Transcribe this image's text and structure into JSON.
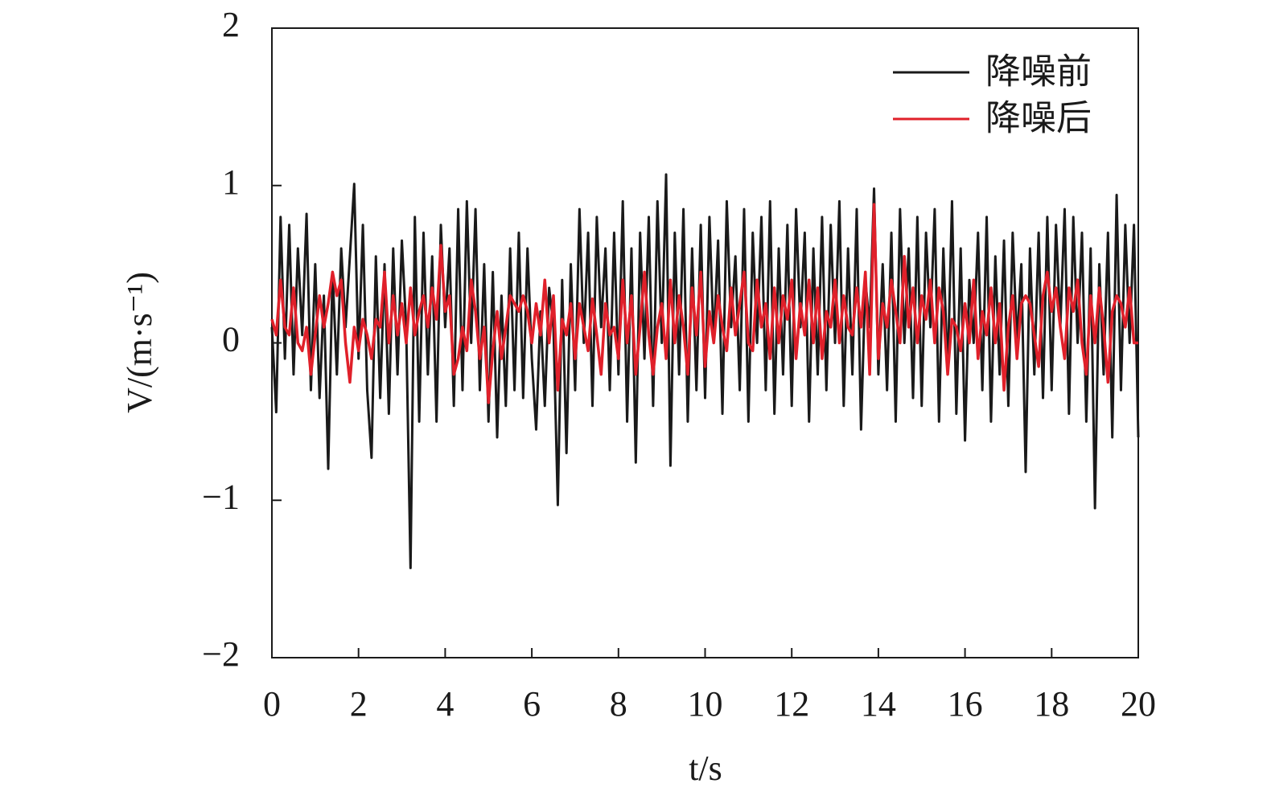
{
  "chart_data": {
    "type": "line",
    "xlabel": "t/s",
    "ylabel": "V/(m·s⁻¹)",
    "xlim": [
      0,
      20
    ],
    "ylim": [
      -2,
      2
    ],
    "xticks": [
      0,
      2,
      4,
      6,
      8,
      10,
      12,
      14,
      16,
      18,
      20
    ],
    "yticks": [
      {
        "value": -2,
        "label": "−2"
      },
      {
        "value": -1,
        "label": "−1"
      },
      0,
      1,
      2
    ],
    "legend": "upper right",
    "grid": false,
    "x": [
      0,
      0.1,
      0.2,
      0.3,
      0.4,
      0.5,
      0.6,
      0.7,
      0.8,
      0.9,
      1,
      1.1,
      1.2,
      1.3,
      1.4,
      1.5,
      1.6,
      1.7,
      1.8,
      1.9,
      2,
      2.1,
      2.2,
      2.3,
      2.4,
      2.5,
      2.6,
      2.7,
      2.8,
      2.9,
      3,
      3.1,
      3.2,
      3.3,
      3.4,
      3.5,
      3.6,
      3.7,
      3.8,
      3.9,
      4,
      4.1,
      4.2,
      4.3,
      4.4,
      4.5,
      4.6,
      4.7,
      4.8,
      4.9,
      5,
      5.1,
      5.2,
      5.3,
      5.4,
      5.5,
      5.6,
      5.7,
      5.8,
      5.9,
      6,
      6.1,
      6.2,
      6.3,
      6.4,
      6.5,
      6.6,
      6.7,
      6.8,
      6.9,
      7,
      7.1,
      7.2,
      7.3,
      7.4,
      7.5,
      7.6,
      7.7,
      7.8,
      7.9,
      8,
      8.1,
      8.2,
      8.3,
      8.4,
      8.5,
      8.6,
      8.7,
      8.8,
      8.9,
      9,
      9.1,
      9.2,
      9.3,
      9.4,
      9.5,
      9.6,
      9.7,
      9.8,
      9.9,
      10,
      10.1,
      10.2,
      10.3,
      10.4,
      10.5,
      10.6,
      10.7,
      10.8,
      10.9,
      11,
      11.1,
      11.2,
      11.3,
      11.4,
      11.5,
      11.6,
      11.7,
      11.8,
      11.9,
      12,
      12.1,
      12.2,
      12.3,
      12.4,
      12.5,
      12.6,
      12.7,
      12.8,
      12.9,
      13,
      13.1,
      13.2,
      13.3,
      13.4,
      13.5,
      13.6,
      13.7,
      13.8,
      13.9,
      14,
      14.1,
      14.2,
      14.3,
      14.4,
      14.5,
      14.6,
      14.7,
      14.8,
      14.9,
      15,
      15.1,
      15.2,
      15.3,
      15.4,
      15.5,
      15.6,
      15.7,
      15.8,
      15.9,
      16,
      16.1,
      16.2,
      16.3,
      16.4,
      16.5,
      16.6,
      16.7,
      16.8,
      16.9,
      17,
      17.1,
      17.2,
      17.3,
      17.4,
      17.5,
      17.6,
      17.7,
      17.8,
      17.9,
      18,
      18.1,
      18.2,
      18.3,
      18.4,
      18.5,
      18.6,
      18.7,
      18.8,
      18.9,
      19,
      19.1,
      19.2,
      19.3,
      19.4,
      19.5,
      19.6,
      19.7,
      19.8,
      19.9,
      20
    ],
    "series": [
      {
        "name": "降噪前",
        "color": "#1a1a1a",
        "values": [
          0.1,
          -0.44,
          0.8,
          -0.1,
          0.75,
          -0.2,
          0.6,
          0.05,
          0.82,
          -0.3,
          0.5,
          -0.35,
          0.3,
          -0.8,
          0.45,
          -0.2,
          0.6,
          0.1,
          0.55,
          1.01,
          -0.1,
          0.75,
          -0.3,
          -0.73,
          0.55,
          -0.35,
          0.5,
          -0.45,
          0.6,
          -0.2,
          0.65,
          0.1,
          -1.43,
          0.8,
          -0.5,
          0.7,
          -0.2,
          0.55,
          -0.5,
          0.75,
          0.1,
          0.6,
          -0.4,
          0.85,
          -0.3,
          0.9,
          0.0,
          0.85,
          -0.3,
          0.5,
          -0.5,
          0.45,
          -0.6,
          0.3,
          -0.4,
          0.6,
          -0.3,
          0.7,
          -0.35,
          0.6,
          -0.1,
          -0.55,
          0.2,
          -0.4,
          0.35,
          0.1,
          -1.03,
          0.4,
          -0.7,
          0.5,
          -0.3,
          0.85,
          0.0,
          0.7,
          -0.4,
          0.8,
          0.1,
          0.6,
          -0.3,
          0.7,
          -0.2,
          0.9,
          -0.5,
          0.6,
          -0.76,
          0.7,
          -0.1,
          0.8,
          -0.4,
          0.9,
          0.0,
          1.07,
          -0.78,
          0.7,
          -0.2,
          0.85,
          -0.5,
          0.6,
          -0.3,
          0.75,
          -0.35,
          0.8,
          0.0,
          0.65,
          -0.45,
          0.9,
          0.1,
          0.55,
          -0.3,
          0.85,
          -0.5,
          0.7,
          0.0,
          0.8,
          -0.3,
          0.9,
          -0.45,
          0.6,
          -0.2,
          0.75,
          -0.4,
          0.85,
          0.1,
          0.7,
          -0.5,
          0.6,
          -0.2,
          0.8,
          -0.3,
          0.75,
          0.0,
          0.9,
          -0.4,
          0.6,
          -0.2,
          0.85,
          -0.55,
          0.4,
          0.1,
          0.98,
          -0.2,
          0.5,
          -0.3,
          0.7,
          -0.5,
          0.85,
          0.0,
          0.6,
          -0.35,
          0.8,
          -0.4,
          0.7,
          0.1,
          0.85,
          -0.5,
          0.6,
          -0.2,
          0.9,
          -0.45,
          0.6,
          -0.62,
          0.4,
          0.0,
          0.7,
          -0.3,
          0.8,
          -0.5,
          0.55,
          -0.2,
          0.65,
          -0.4,
          0.7,
          0.0,
          0.5,
          -0.82,
          0.6,
          -0.2,
          0.7,
          -0.35,
          0.8,
          -0.3,
          0.75,
          0.1,
          0.85,
          -0.45,
          0.8,
          0.0,
          0.7,
          -0.5,
          0.6,
          -1.05,
          0.5,
          -0.2,
          0.7,
          -0.6,
          0.94,
          -0.3,
          0.75,
          0.0,
          0.75,
          -0.6
        ]
      },
      {
        "name": "降噪后",
        "color": "#e0202a",
        "values": [
          0.15,
          0.05,
          0.4,
          0.1,
          0.05,
          0.35,
          0.0,
          -0.05,
          0.1,
          -0.2,
          0.05,
          0.3,
          0.1,
          0.25,
          0.45,
          0.3,
          0.4,
          0.0,
          -0.25,
          0.1,
          -0.05,
          0.15,
          0.05,
          -0.1,
          0.15,
          0.1,
          0.45,
          0.0,
          0.3,
          0.05,
          0.25,
          0.0,
          0.35,
          0.05,
          0.2,
          0.3,
          0.1,
          0.35,
          0.15,
          0.62,
          0.2,
          0.3,
          -0.2,
          -0.1,
          0.1,
          -0.05,
          0.4,
          0.2,
          -0.1,
          0.1,
          -0.38,
          -0.05,
          0.2,
          -0.1,
          0.1,
          0.3,
          0.25,
          0.2,
          0.3,
          0.2,
          0.0,
          0.25,
          0.05,
          0.4,
          0.0,
          0.3,
          -0.3,
          0.15,
          0.05,
          0.25,
          -0.1,
          0.25,
          0.1,
          -0.05,
          0.28,
          0.05,
          -0.2,
          0.25,
          0.05,
          0.1,
          -0.1,
          0.4,
          0.0,
          0.3,
          -0.2,
          0.1,
          0.45,
          0.05,
          -0.2,
          0.1,
          0.25,
          -0.1,
          0.4,
          0.0,
          0.3,
          0.1,
          -0.2,
          0.35,
          0.05,
          0.45,
          -0.15,
          0.2,
          0.0,
          0.3,
          0.1,
          -0.05,
          0.35,
          0.05,
          0.25,
          0.45,
          0.0,
          -0.05,
          0.4,
          0.1,
          0.25,
          -0.1,
          0.35,
          0.0,
          0.3,
          0.15,
          0.4,
          -0.1,
          0.25,
          0.05,
          0.4,
          0.0,
          0.35,
          -0.1,
          0.2,
          0.1,
          0.4,
          0.0,
          0.3,
          0.1,
          0.05,
          0.35,
          0.1,
          0.45,
          -0.2,
          0.88,
          -0.1,
          0.25,
          0.1,
          0.4,
          0.2,
          0.0,
          0.55,
          0.1,
          0.35,
          0.0,
          0.3,
          0.15,
          0.4,
          0.0,
          0.35,
          0.2,
          -0.2,
          0.15,
          0.1,
          -0.05,
          0.25,
          0.0,
          0.4,
          -0.1,
          0.2,
          0.05,
          0.35,
          0.0,
          0.25,
          -0.3,
          0.1,
          0.3,
          -0.1,
          0.25,
          0.3,
          0.25,
          0.05,
          -0.15,
          0.3,
          0.45,
          0.2,
          0.35,
          0.1,
          -0.1,
          0.35,
          0.2,
          0.4,
          0.0,
          -0.2,
          0.3,
          0.0,
          0.35,
          0.1,
          -0.25,
          0.2,
          0.3,
          0.25,
          0.1,
          0.35,
          0.0,
          0.0
        ]
      }
    ]
  }
}
